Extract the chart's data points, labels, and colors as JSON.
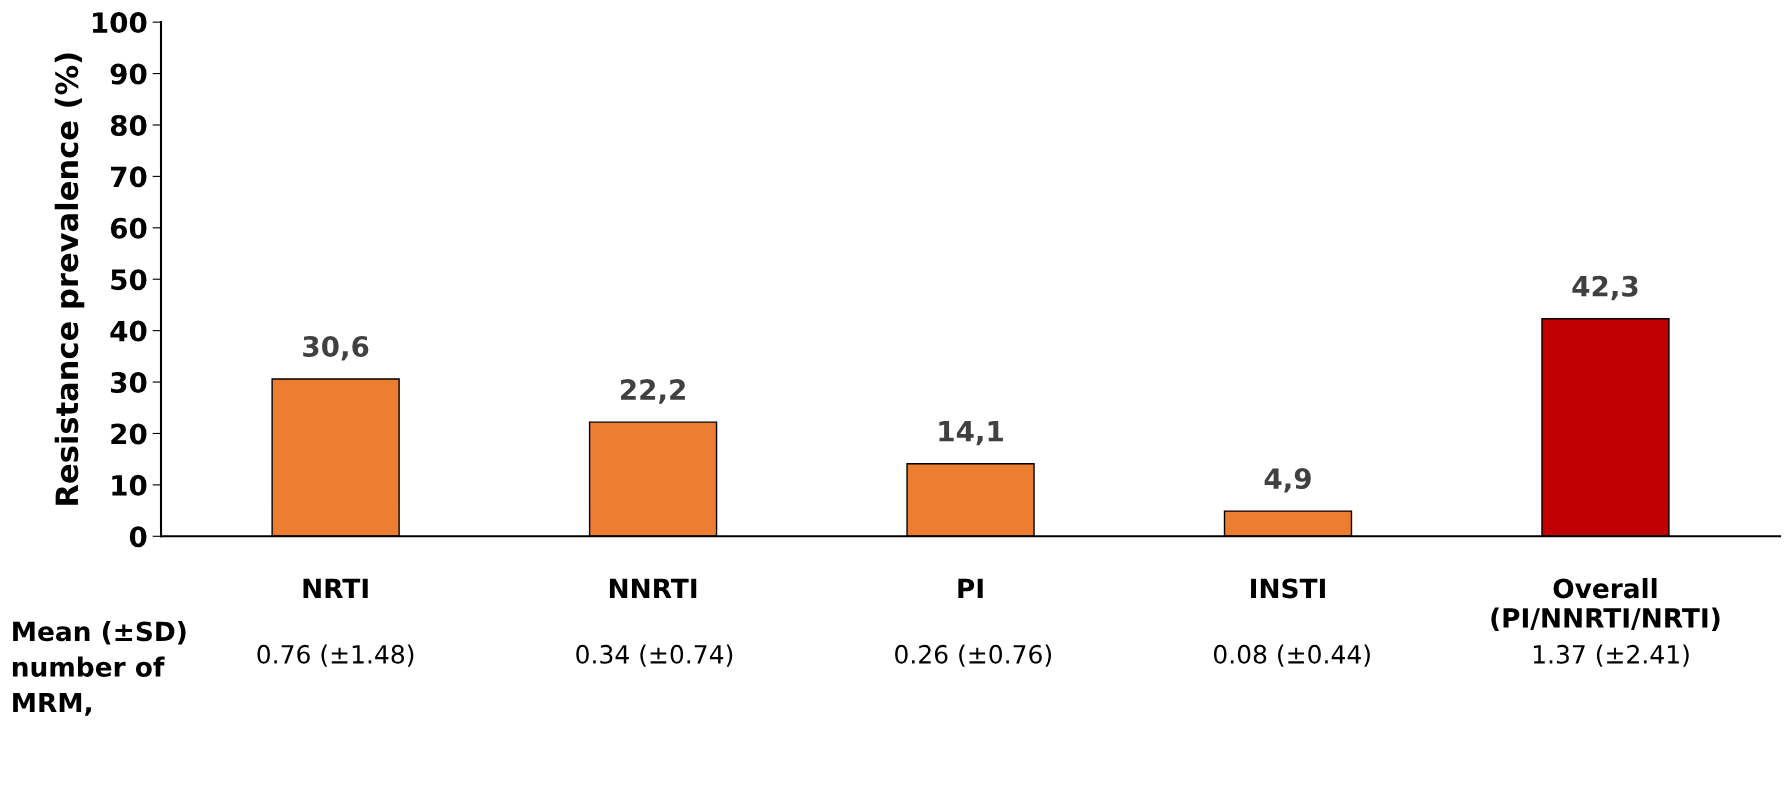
{
  "chart_data": {
    "type": "bar",
    "ylabel": "Resistance prevalence (%)",
    "categories": [
      "NRTI",
      "NNRTI",
      "PI",
      "INSTI",
      "Overall\n(PI/NNRTI/NRTI)"
    ],
    "values": [
      30.6,
      22.2,
      14.1,
      4.9,
      42.3
    ],
    "colors": [
      "#ed7d31",
      "#ed7d31",
      "#ed7d31",
      "#ed7d31",
      "#c00000"
    ],
    "value_labels": [
      "30,6",
      "22,2",
      "14,1",
      "4,9",
      "42,3"
    ],
    "ylim": [
      0,
      100
    ],
    "yticks": [
      0,
      10,
      20,
      30,
      40,
      50,
      60,
      70,
      80,
      90,
      100
    ],
    "grid": false,
    "annotations": [
      "Mean (±SD)\nnumber of\nMRM,",
      "0.76 (±1.48)",
      "0.34 (±0.74)",
      "0.26 (±0.76)",
      "0.08 (±0.44)",
      "1.37 (±2.41)"
    ]
  }
}
